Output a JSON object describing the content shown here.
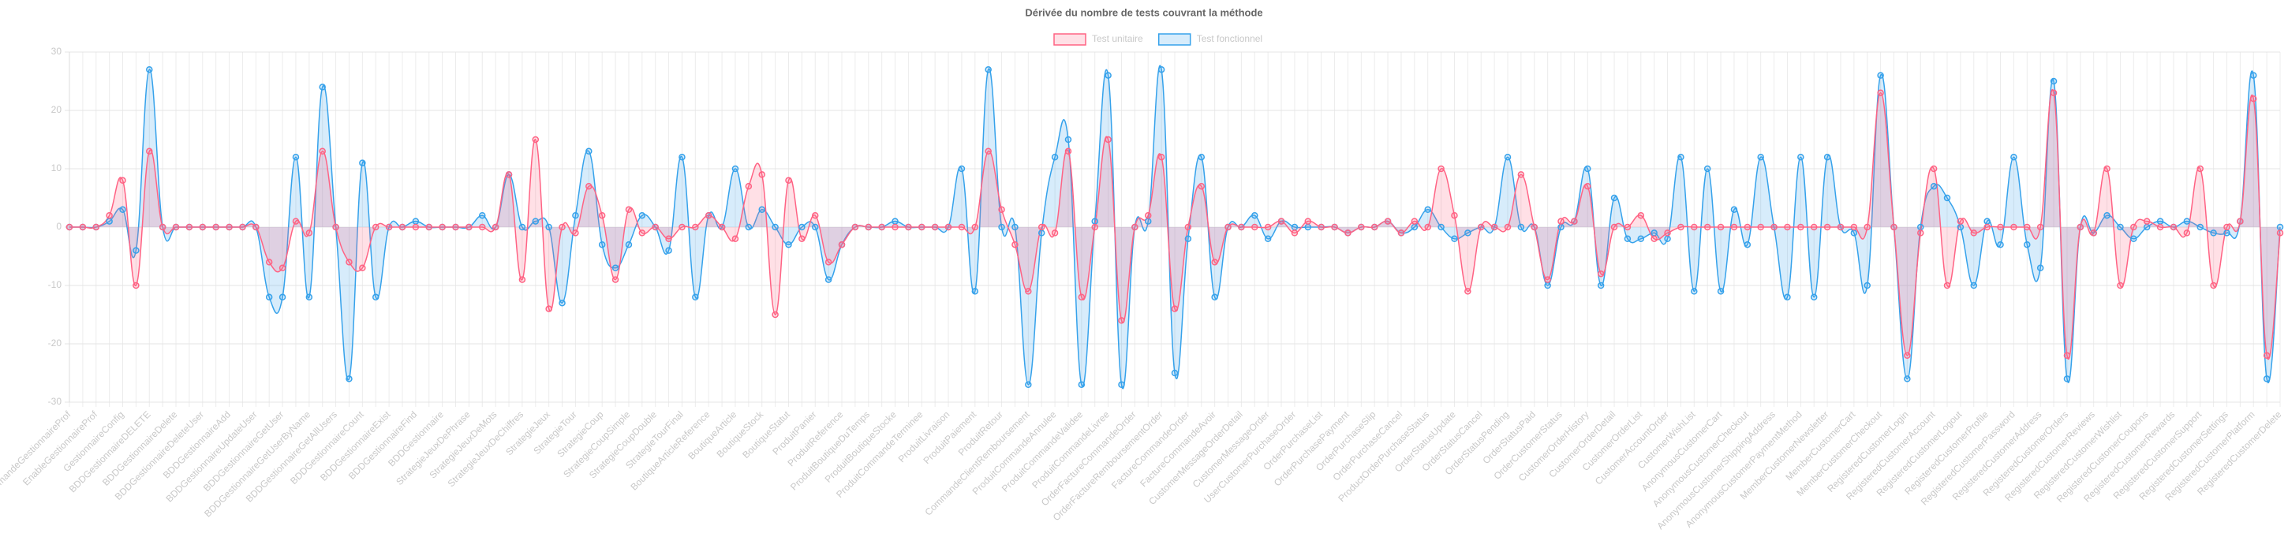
{
  "chart_data": {
    "type": "line",
    "title": "Dérivée du nombre de tests couvrant la méthode",
    "fill": true,
    "grid": true,
    "legend": "top",
    "ylim": [
      -30,
      30
    ],
    "yticks": [
      -30,
      -20,
      -10,
      0,
      10,
      20,
      30
    ],
    "categories": [
      "DemandeGestionnaireProf",
      null,
      "EnableGestionnaireProf",
      null,
      "GestionnaireConfig",
      null,
      "BDDGestionnaireDELETE",
      null,
      "BDDGestionnaireDelete",
      null,
      "BDDGestionnaireDeleteUser",
      null,
      "BDDGestionnaireAdd",
      null,
      "BDDGestionnaireUpdateUser",
      null,
      "BDDGestionnaireGetUser",
      null,
      "BDDGestionnaireGetUserByName",
      null,
      "BDDGestionnaireGetAllUsers",
      null,
      "BDDGestionnaireCount",
      null,
      "BDDGestionnaireExist",
      null,
      "BDDGestionnaireFind",
      null,
      "BDDGestionnaire",
      null,
      "StrategieJeuxDePhrase",
      null,
      "StrategieJeuxDeMots",
      null,
      "StrategieJeuxDeChiffres",
      null,
      "StrategieJeux",
      null,
      "StrategieTour",
      null,
      "StrategieCoup",
      null,
      "StrategieCoupSimple",
      null,
      "StrategieCoupDouble",
      null,
      "StrategieTourFinal",
      null,
      "BoutiqueArticleReference",
      null,
      "BoutiqueArticle",
      null,
      "BoutiqueStock",
      null,
      "BoutiqueStatut",
      null,
      "ProduitPanier",
      null,
      "ProduitReference",
      null,
      "ProduitBoutiqueDuTemps",
      null,
      "ProduitBoutiqueStocke",
      null,
      "ProduitCommandeTerminee",
      null,
      "ProduitLivraison",
      null,
      "ProduitPaiement",
      null,
      "ProduitRetour",
      null,
      "CommandeClientRemboursement",
      null,
      "ProduitCommandeAnnulee",
      null,
      "ProduitCommandeValidee",
      null,
      "ProduitCommandeLivree",
      null,
      "OrderFactureCommandeOrder",
      null,
      "OrderFactureRemboursementOrder",
      null,
      "FactureCommandeOrder",
      null,
      "FactureCommandeAvoir",
      null,
      "CustomerMessageOrderDetail",
      null,
      "CustomerMessageOrder",
      null,
      "UserCustomerPurchaseOrder",
      null,
      "OrderPurchaseList",
      null,
      "OrderPurchasePayment",
      null,
      "OrderPurchaseSlip",
      null,
      "OrderPurchaseCancel",
      null,
      "ProductOrderPurchaseStatus",
      null,
      "OrderStatusUpdate",
      null,
      "OrderStatusCancel",
      null,
      "OrderStatusPending",
      null,
      "OrderStatusPaid",
      null,
      "OrderCustomerStatus",
      null,
      "CustomerOrderHistory",
      null,
      "CustomerOrderDetail",
      null,
      "CustomerOrderList",
      null,
      "CustomerAccountOrder",
      null,
      "CustomerWishList",
      null,
      "AnonymousCustomerCart",
      null,
      "AnonymousCustomerCheckout",
      null,
      "AnonymousCustomerShippingAddress",
      null,
      "AnonymousCustomerPaymentMethod",
      null,
      "MemberCustomerNewsletter",
      null,
      "MemberCustomerCart",
      null,
      "MemberCustomerCheckout",
      null,
      "RegisteredCustomerLogin",
      null,
      "RegisteredCustomerAccount",
      null,
      "RegisteredCustomerLogout",
      null,
      "RegisteredCustomerProfile",
      null,
      "RegisteredCustomerPassword",
      null,
      "RegisteredCustomerAddress",
      null,
      "RegisteredCustomerOrders",
      null,
      "RegisteredCustomerReviews",
      null,
      "RegisteredCustomerWishlist",
      null,
      "RegisteredCustomerCoupons",
      null,
      "RegisteredCustomerRewards",
      null,
      "RegisteredCustomerSupport",
      null,
      "RegisteredCustomerSettings",
      null,
      "RegisteredCustomerPlatform",
      null,
      "RegisteredCustomerDelete"
    ],
    "series": [
      {
        "name": "Test unitaire",
        "color": "#ff6384",
        "fill_color": "rgba(255,99,132,0.2)",
        "values": [
          0,
          0,
          0,
          2,
          8,
          -10,
          13,
          0,
          0,
          0,
          0,
          0,
          0,
          0,
          0,
          -6,
          -7,
          1,
          -1,
          13,
          0,
          -6,
          -7,
          0,
          0,
          0,
          0,
          0,
          0,
          0,
          0,
          0,
          0,
          9,
          -9,
          15,
          -14,
          0,
          -1,
          7,
          2,
          -9,
          3,
          -1,
          0,
          -2,
          0,
          0,
          2,
          0,
          -2,
          7,
          9,
          -15,
          8,
          -2,
          2,
          -6,
          -3,
          0,
          0,
          0,
          0,
          0,
          0,
          0,
          0,
          0,
          0,
          13,
          3,
          -3,
          -11,
          0,
          -1,
          13,
          -12,
          0,
          15,
          -16,
          0,
          2,
          12,
          -14,
          0,
          7,
          -6,
          0,
          0,
          0,
          0,
          1,
          -1,
          1,
          0,
          0,
          -1,
          0,
          0,
          1,
          -1,
          1,
          0,
          10,
          2,
          -11,
          0,
          0,
          0,
          9,
          0,
          -9,
          1,
          1,
          7,
          -8,
          0,
          0,
          2,
          -2,
          -1,
          0,
          0,
          0,
          0,
          0,
          0,
          0,
          0,
          0,
          0,
          0,
          0,
          0,
          0,
          0,
          23,
          0,
          -22,
          -1,
          10,
          -10,
          1,
          -1,
          0,
          0,
          0,
          0,
          0,
          23,
          -22,
          0,
          -1,
          10,
          -10,
          0,
          1,
          0,
          0,
          -1,
          10,
          -10,
          0,
          1,
          22,
          -22,
          -1
        ]
      },
      {
        "name": "Test fonctionnel",
        "color": "#36a2eb",
        "fill_color": "rgba(54,162,235,0.2)",
        "values": [
          0,
          0,
          0,
          1,
          3,
          -4,
          27,
          0,
          0,
          0,
          0,
          0,
          0,
          0,
          0,
          -12,
          -12,
          12,
          -12,
          24,
          0,
          -26,
          11,
          -12,
          0,
          0,
          1,
          0,
          0,
          0,
          0,
          2,
          0,
          9,
          0,
          1,
          0,
          -13,
          2,
          13,
          -3,
          -7,
          -3,
          2,
          0,
          -4,
          12,
          -12,
          2,
          0,
          10,
          0,
          3,
          0,
          -3,
          0,
          0,
          -9,
          -3,
          0,
          0,
          0,
          1,
          0,
          0,
          0,
          0,
          10,
          -11,
          27,
          0,
          0,
          -27,
          -1,
          12,
          15,
          -27,
          1,
          26,
          -27,
          0,
          1,
          27,
          -25,
          -2,
          12,
          -12,
          0,
          0,
          2,
          -2,
          1,
          0,
          0,
          0,
          0,
          -1,
          0,
          0,
          1,
          -1,
          0,
          3,
          0,
          -2,
          -1,
          0,
          0,
          12,
          0,
          0,
          -10,
          0,
          1,
          10,
          -10,
          5,
          -2,
          -2,
          -1,
          -2,
          12,
          -11,
          10,
          -11,
          3,
          -3,
          12,
          0,
          -12,
          12,
          -12,
          12,
          0,
          -1,
          -10,
          26,
          0,
          -26,
          0,
          7,
          5,
          0,
          -10,
          1,
          -3,
          12,
          -3,
          -7,
          25,
          -26,
          0,
          -1,
          2,
          0,
          -2,
          0,
          1,
          0,
          1,
          0,
          -1,
          -1,
          1,
          26,
          -26,
          0
        ]
      }
    ]
  }
}
